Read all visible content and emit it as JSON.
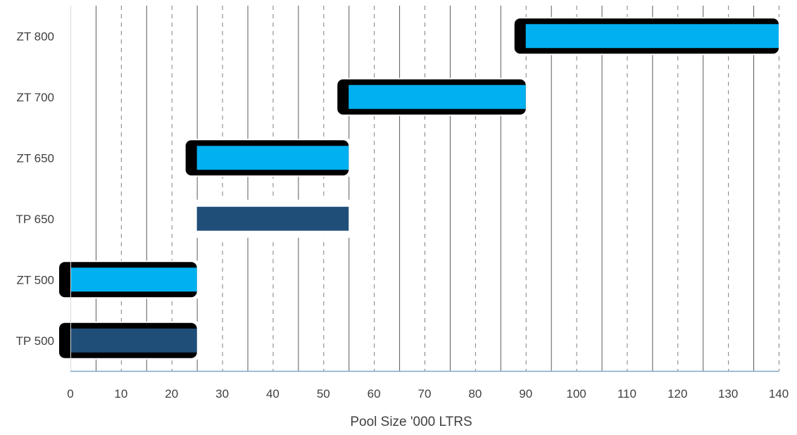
{
  "chart_data": {
    "type": "bar",
    "orientation": "horizontal",
    "chart_style": "floating range bars",
    "title": "",
    "xlabel": "Pool Size '000 LTRS",
    "ylabel": "",
    "xlim": [
      0,
      140
    ],
    "x_ticks": [
      0,
      10,
      20,
      30,
      40,
      50,
      60,
      70,
      80,
      90,
      100,
      110,
      120,
      130,
      140
    ],
    "categories": [
      "ZT 800",
      "ZT 700",
      "ZT 650",
      "TP 650",
      "ZT 500",
      "TP 500"
    ],
    "ranges": [
      {
        "category": "ZT 800",
        "start": 90,
        "end": 140,
        "color": "#00b0f0",
        "outlined": true
      },
      {
        "category": "ZT 700",
        "start": 55,
        "end": 90,
        "color": "#00b0f0",
        "outlined": true
      },
      {
        "category": "ZT 650",
        "start": 25,
        "end": 55,
        "color": "#00b0f0",
        "outlined": true
      },
      {
        "category": "TP 650",
        "start": 25,
        "end": 55,
        "color": "#1f4e79",
        "outlined": false
      },
      {
        "category": "ZT 500",
        "start": 0,
        "end": 25,
        "color": "#00b0f0",
        "outlined": true
      },
      {
        "category": "TP 500",
        "start": 0,
        "end": 25,
        "color": "#1f4e79",
        "outlined": true
      }
    ],
    "grid": "vertical, alternating solid and dashed every 5",
    "legend": "none"
  }
}
